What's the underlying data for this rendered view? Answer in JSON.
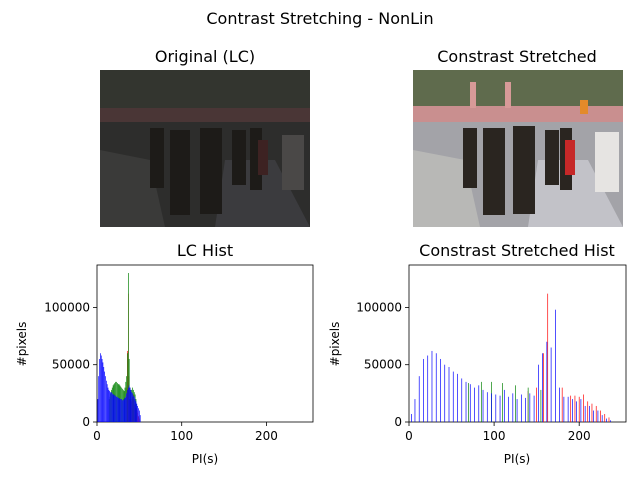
{
  "figure": {
    "suptitle": "Contrast Stretching - NonLin"
  },
  "images": [
    {
      "title": "Original (LC)",
      "description": "low-contrast dark photo of a crowd walking toward a pink gateway"
    },
    {
      "title": "Constrast Stretched",
      "description": "contrast-stretched photo of the same crowd scene"
    }
  ],
  "chart_data": [
    {
      "type": "bar",
      "title": "LC Hist",
      "xlabel": "PI(s)",
      "ylabel": "#pixels",
      "xlim": [
        0,
        255
      ],
      "ylim": [
        0,
        137000
      ],
      "xticks": [
        0,
        100,
        200
      ],
      "yticks": [
        0,
        50000,
        100000
      ],
      "series": [
        {
          "color": "#ff0000",
          "x": [
            35,
            36,
            37,
            38,
            39,
            40,
            41,
            42,
            43,
            44,
            45,
            46,
            47,
            48,
            49,
            50
          ],
          "values": [
            30000,
            62000,
            112000,
            40000,
            20000,
            18000,
            20000,
            22000,
            24000,
            20000,
            15000,
            12000,
            10000,
            8000,
            5000,
            3000
          ]
        },
        {
          "color": "#008000",
          "x": [
            14,
            15,
            16,
            17,
            18,
            19,
            20,
            21,
            22,
            23,
            24,
            25,
            26,
            27,
            28,
            29,
            30,
            31,
            32,
            33,
            34,
            35,
            36,
            37,
            38,
            39,
            40,
            41,
            42,
            43,
            44,
            45,
            46
          ],
          "values": [
            20000,
            22000,
            25000,
            28000,
            30000,
            32000,
            33000,
            34000,
            35000,
            35000,
            34000,
            33000,
            33000,
            32000,
            31000,
            30000,
            29000,
            28000,
            27000,
            30000,
            35000,
            40000,
            60000,
            130000,
            55000,
            30000,
            26000,
            28000,
            30000,
            28000,
            26000,
            24000,
            20000
          ]
        },
        {
          "color": "#0000ff",
          "x": [
            1,
            2,
            3,
            4,
            5,
            6,
            7,
            8,
            9,
            10,
            11,
            12,
            13,
            14,
            15,
            16,
            17,
            18,
            19,
            20,
            21,
            22,
            23,
            24,
            25,
            26,
            27,
            28,
            29,
            30,
            31,
            32,
            33,
            34,
            35,
            36,
            37,
            38,
            39,
            40,
            41,
            42,
            43,
            44,
            45,
            46,
            47,
            48,
            49,
            50,
            51
          ],
          "values": [
            20000,
            40000,
            55000,
            60000,
            58000,
            55000,
            52000,
            48000,
            44000,
            40000,
            36000,
            33000,
            30000,
            28000,
            27000,
            26000,
            26000,
            25000,
            24000,
            24000,
            23000,
            23000,
            22000,
            22000,
            21000,
            21000,
            20000,
            20000,
            20000,
            19000,
            19000,
            20000,
            21000,
            22000,
            25000,
            28000,
            30000,
            32000,
            30000,
            28000,
            26000,
            25000,
            23000,
            22000,
            20000,
            18000,
            16000,
            14000,
            12000,
            10000,
            6000
          ]
        }
      ]
    },
    {
      "type": "bar",
      "title": "Constrast Stretched Hist",
      "xlabel": "PI(s)",
      "ylabel": "#pixels",
      "xlim": [
        0,
        255
      ],
      "ylim": [
        0,
        137000
      ],
      "xticks": [
        0,
        100,
        200
      ],
      "yticks": [
        0,
        50000,
        100000
      ],
      "series": [
        {
          "color": "#ff0000",
          "x": [
            140,
            150,
            158,
            163,
            180,
            190,
            195,
            200,
            205,
            210,
            215,
            220,
            225,
            230,
            235
          ],
          "values": [
            27000,
            30000,
            60000,
            112000,
            30000,
            23000,
            23000,
            22000,
            24000,
            18000,
            16000,
            14000,
            10000,
            7000,
            4000
          ]
        },
        {
          "color": "#008000",
          "x": [
            70,
            85,
            97,
            110,
            125,
            140,
            155
          ],
          "values": [
            34000,
            35000,
            35000,
            34000,
            32000,
            30000,
            28000
          ]
        },
        {
          "color": "#0000ff",
          "x": [
            3,
            7,
            12,
            17,
            22,
            27,
            32,
            37,
            42,
            47,
            52,
            57,
            62,
            67,
            72,
            77,
            82,
            87,
            92,
            97,
            102,
            107,
            112,
            117,
            122,
            127,
            132,
            137,
            142,
            147,
            152,
            157,
            162,
            167,
            172,
            177,
            182,
            187,
            192,
            197,
            202,
            207,
            212,
            217,
            222,
            227,
            232,
            237
          ],
          "values": [
            7000,
            20000,
            40000,
            55000,
            58000,
            62000,
            60000,
            55000,
            50000,
            48000,
            44000,
            42000,
            38000,
            35000,
            33000,
            30000,
            32000,
            28000,
            26000,
            25000,
            24000,
            23000,
            28000,
            22000,
            25000,
            20000,
            24000,
            21000,
            25000,
            23000,
            50000,
            60000,
            70000,
            65000,
            98000,
            30000,
            22000,
            22000,
            20000,
            18000,
            20000,
            14000,
            14000,
            10000,
            10000,
            6000,
            3000,
            1500
          ]
        }
      ]
    }
  ]
}
